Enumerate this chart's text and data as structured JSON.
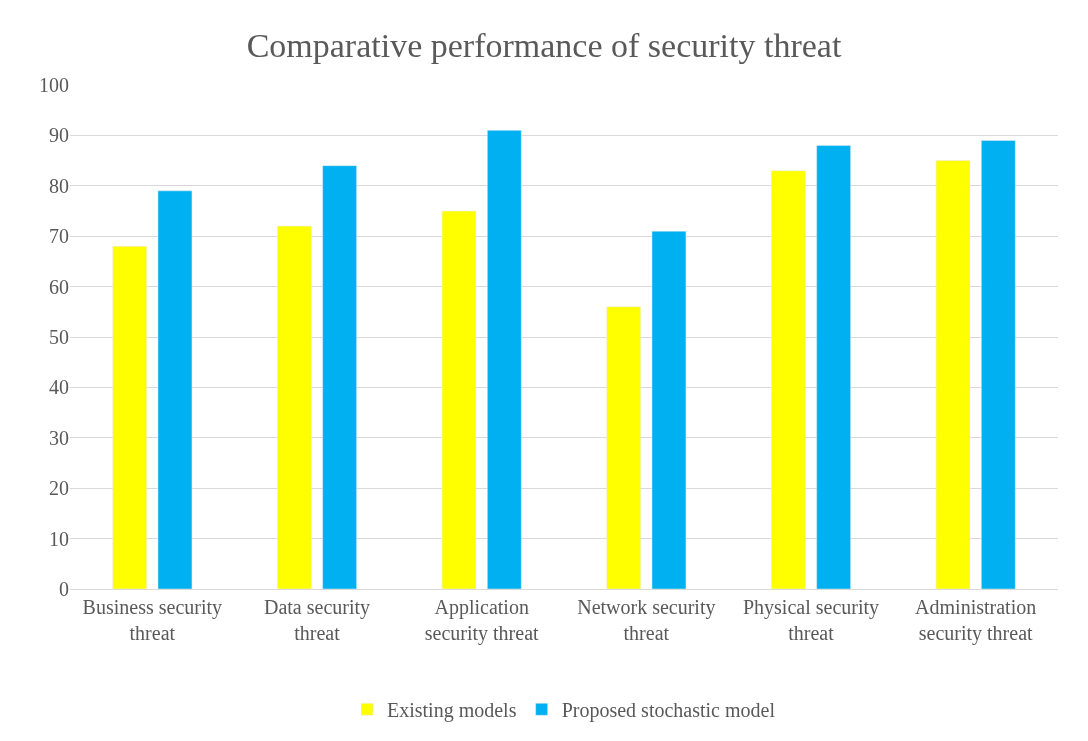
{
  "chart_data": {
    "type": "bar",
    "title": "Comparative performance of security threat",
    "categories": [
      "Business security threat",
      "Data security threat",
      "Application security threat",
      "Network security threat",
      "Physical security threat",
      "Administration security threat"
    ],
    "series": [
      {
        "name": "Existing models",
        "color": "#ffff00",
        "values": [
          68,
          72,
          75,
          56,
          83,
          85
        ]
      },
      {
        "name": "Proposed stochastic model",
        "color": "#00b0f0",
        "values": [
          79,
          84,
          91,
          71,
          88,
          89
        ]
      }
    ],
    "ylim": [
      0,
      100
    ],
    "yticks": [
      0,
      10,
      20,
      30,
      40,
      50,
      60,
      70,
      80,
      90,
      100
    ],
    "grid": "y",
    "legend": "bottom"
  }
}
